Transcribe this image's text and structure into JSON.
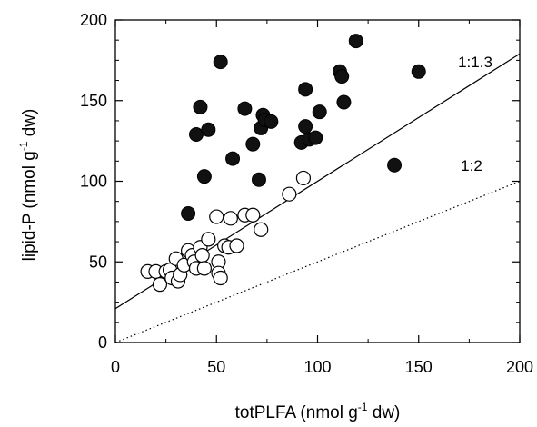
{
  "chart_data": {
    "type": "scatter",
    "xlabel": {
      "main": "totPLFA (nmol g",
      "sup": "-1",
      "rest": " dw)"
    },
    "ylabel": {
      "main": "lipid-P (nmol g",
      "sup": "-1",
      "rest": " dw)"
    },
    "xlim": [
      0,
      200
    ],
    "ylim": [
      0,
      200
    ],
    "xticks": [
      0,
      50,
      100,
      150,
      200
    ],
    "yticks": [
      0,
      50,
      100,
      150,
      200
    ],
    "grid": false,
    "colors": {
      "filled": "#111111",
      "open_stroke": "#000000",
      "open_fill": "#ffffff",
      "line": "#000000"
    },
    "series": [
      {
        "marker": "filled",
        "points": [
          [
            36,
            80
          ],
          [
            40,
            129
          ],
          [
            42,
            146
          ],
          [
            44,
            103
          ],
          [
            46,
            132
          ],
          [
            52,
            174
          ],
          [
            58,
            114
          ],
          [
            64,
            145
          ],
          [
            68,
            123
          ],
          [
            71,
            101
          ],
          [
            72,
            133
          ],
          [
            73,
            141
          ],
          [
            74,
            138
          ],
          [
            77,
            137
          ],
          [
            92,
            124
          ],
          [
            94,
            157
          ],
          [
            94,
            134
          ],
          [
            96,
            126
          ],
          [
            99,
            127
          ],
          [
            101,
            143
          ],
          [
            111,
            168
          ],
          [
            112,
            165
          ],
          [
            113,
            149
          ],
          [
            119,
            187
          ],
          [
            138,
            110
          ],
          [
            150,
            168
          ]
        ]
      },
      {
        "marker": "open",
        "points": [
          [
            16,
            44
          ],
          [
            20,
            44
          ],
          [
            22,
            36
          ],
          [
            25,
            44
          ],
          [
            27,
            45
          ],
          [
            28,
            40
          ],
          [
            30,
            52
          ],
          [
            31,
            38
          ],
          [
            32,
            42
          ],
          [
            34,
            48
          ],
          [
            36,
            57
          ],
          [
            38,
            54
          ],
          [
            39,
            50
          ],
          [
            40,
            46
          ],
          [
            42,
            59
          ],
          [
            43,
            54
          ],
          [
            44,
            46
          ],
          [
            46,
            64
          ],
          [
            50,
            78
          ],
          [
            51,
            50
          ],
          [
            51,
            43
          ],
          [
            52,
            40
          ],
          [
            54,
            60
          ],
          [
            56,
            59
          ],
          [
            57,
            77
          ],
          [
            60,
            60
          ],
          [
            64,
            79
          ],
          [
            68,
            79
          ],
          [
            72,
            70
          ],
          [
            86,
            92
          ],
          [
            93,
            102
          ]
        ]
      }
    ],
    "lines": [
      {
        "label": "1:1.3",
        "style": "solid",
        "from": [
          0,
          21
        ],
        "to": [
          200,
          179
        ]
      },
      {
        "label": "1:2",
        "style": "dotted",
        "from": [
          0,
          0
        ],
        "to": [
          200,
          100
        ]
      }
    ]
  }
}
